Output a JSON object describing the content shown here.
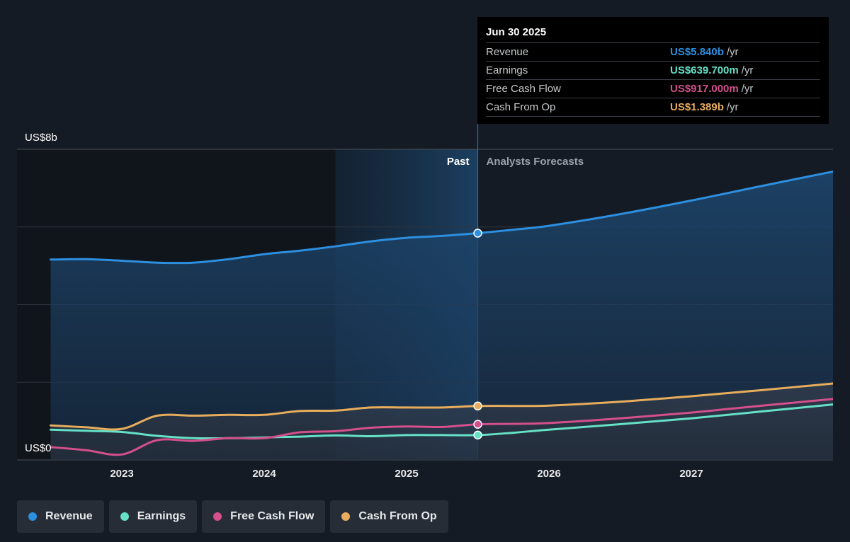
{
  "chart_data": {
    "type": "area",
    "y_axis": {
      "top_label": "US$8b",
      "bottom_label": "US$0",
      "ylim": [
        0,
        8
      ]
    },
    "x_ticks": [
      {
        "label": "2023",
        "x": 2023.0
      },
      {
        "label": "2024",
        "x": 2024.0
      },
      {
        "label": "2025",
        "x": 2025.0
      },
      {
        "label": "2026",
        "x": 2026.0
      },
      {
        "label": "2027",
        "x": 2027.0
      }
    ],
    "xlim": [
      2022.25,
      2028.0
    ],
    "past_label": "Past",
    "forecast_label": "Analysts Forecasts",
    "divider_x": 2025.5,
    "shade_start_x": 2024.5,
    "series": [
      {
        "name": "Revenue",
        "color": "#2d8fe0",
        "points": [
          [
            2022.5,
            5.16
          ],
          [
            2022.75,
            5.17
          ],
          [
            2023.0,
            5.13
          ],
          [
            2023.25,
            5.08
          ],
          [
            2023.5,
            5.08
          ],
          [
            2023.75,
            5.17
          ],
          [
            2024.0,
            5.3
          ],
          [
            2024.25,
            5.39
          ],
          [
            2024.5,
            5.5
          ],
          [
            2024.75,
            5.63
          ],
          [
            2025.0,
            5.72
          ],
          [
            2025.25,
            5.77
          ],
          [
            2025.5,
            5.84
          ],
          [
            2025.75,
            5.93
          ],
          [
            2026.0,
            6.03
          ],
          [
            2026.5,
            6.33
          ],
          [
            2027.0,
            6.68
          ],
          [
            2027.5,
            7.06
          ],
          [
            2028.0,
            7.43
          ]
        ]
      },
      {
        "name": "Earnings",
        "color": "#66e0c6",
        "points": [
          [
            2022.5,
            0.78
          ],
          [
            2022.75,
            0.75
          ],
          [
            2023.0,
            0.72
          ],
          [
            2023.25,
            0.62
          ],
          [
            2023.5,
            0.56
          ],
          [
            2023.75,
            0.56
          ],
          [
            2024.0,
            0.58
          ],
          [
            2024.25,
            0.6
          ],
          [
            2024.5,
            0.63
          ],
          [
            2024.75,
            0.61
          ],
          [
            2025.0,
            0.64
          ],
          [
            2025.25,
            0.64
          ],
          [
            2025.5,
            0.64
          ],
          [
            2025.75,
            0.7
          ],
          [
            2026.0,
            0.78
          ],
          [
            2026.5,
            0.92
          ],
          [
            2027.0,
            1.07
          ],
          [
            2027.5,
            1.25
          ],
          [
            2028.0,
            1.43
          ]
        ]
      },
      {
        "name": "Free Cash Flow",
        "color": "#d44f8c",
        "points": [
          [
            2022.5,
            0.33
          ],
          [
            2022.75,
            0.25
          ],
          [
            2023.0,
            0.14
          ],
          [
            2023.25,
            0.51
          ],
          [
            2023.5,
            0.49
          ],
          [
            2023.75,
            0.56
          ],
          [
            2024.0,
            0.56
          ],
          [
            2024.25,
            0.71
          ],
          [
            2024.5,
            0.74
          ],
          [
            2024.75,
            0.83
          ],
          [
            2025.0,
            0.86
          ],
          [
            2025.25,
            0.85
          ],
          [
            2025.5,
            0.917
          ],
          [
            2025.75,
            0.93
          ],
          [
            2026.0,
            0.95
          ],
          [
            2026.5,
            1.07
          ],
          [
            2027.0,
            1.22
          ],
          [
            2027.5,
            1.4
          ],
          [
            2028.0,
            1.57
          ]
        ]
      },
      {
        "name": "Cash From Op",
        "color": "#e8ad5c",
        "points": [
          [
            2022.5,
            0.89
          ],
          [
            2022.75,
            0.84
          ],
          [
            2023.0,
            0.8
          ],
          [
            2023.25,
            1.14
          ],
          [
            2023.5,
            1.14
          ],
          [
            2023.75,
            1.16
          ],
          [
            2024.0,
            1.16
          ],
          [
            2024.25,
            1.26
          ],
          [
            2024.5,
            1.27
          ],
          [
            2024.75,
            1.35
          ],
          [
            2025.0,
            1.35
          ],
          [
            2025.25,
            1.35
          ],
          [
            2025.5,
            1.389
          ],
          [
            2025.75,
            1.39
          ],
          [
            2026.0,
            1.4
          ],
          [
            2026.5,
            1.5
          ],
          [
            2027.0,
            1.64
          ],
          [
            2027.5,
            1.8
          ],
          [
            2028.0,
            1.97
          ]
        ]
      }
    ]
  },
  "tooltip": {
    "date": "Jun 30 2025",
    "rows": [
      {
        "name": "Revenue",
        "value": "US$5.840b",
        "unit": "/yr",
        "color": "#2d8fe0"
      },
      {
        "name": "Earnings",
        "value": "US$639.700m",
        "unit": "/yr",
        "color": "#66e0c6"
      },
      {
        "name": "Free Cash Flow",
        "value": "US$917.000m",
        "unit": "/yr",
        "color": "#d44f8c"
      },
      {
        "name": "Cash From Op",
        "value": "US$1.389b",
        "unit": "/yr",
        "color": "#e8ad5c"
      }
    ]
  },
  "legend": [
    {
      "label": "Revenue",
      "color": "#2d8fe0"
    },
    {
      "label": "Earnings",
      "color": "#66e0c6"
    },
    {
      "label": "Free Cash Flow",
      "color": "#d44f8c"
    },
    {
      "label": "Cash From Op",
      "color": "#e8ad5c"
    }
  ]
}
